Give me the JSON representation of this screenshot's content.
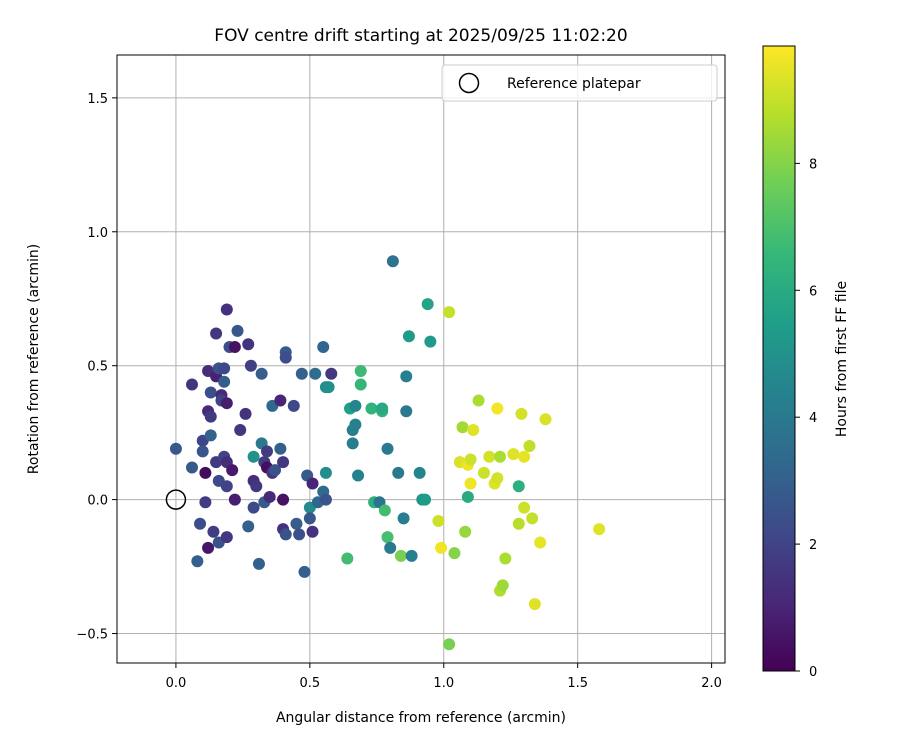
{
  "chart_data": {
    "type": "scatter",
    "title": "FOV centre drift starting at 2025/09/25 11:02:20",
    "xlabel": "Angular distance from reference (arcmin)",
    "ylabel": "Rotation from reference (arcmin)",
    "xlim": [
      -0.22,
      2.05
    ],
    "ylim": [
      -0.61,
      1.66
    ],
    "xticks": [
      0.0,
      0.5,
      1.0,
      1.5,
      2.0
    ],
    "xtick_labels": [
      "0.0",
      "0.5",
      "1.0",
      "1.5",
      "2.0"
    ],
    "yticks": [
      -0.5,
      0.0,
      0.5,
      1.0,
      1.5
    ],
    "ytick_labels": [
      "−0.5",
      "0.0",
      "0.5",
      "1.0",
      "1.5"
    ],
    "grid": true,
    "legend": {
      "location": "top-right",
      "entries": [
        "Reference platepar"
      ]
    },
    "colorbar": {
      "label": "Hours from first FF file",
      "range": [
        0,
        9.85
      ],
      "ticks": [
        0,
        2,
        4,
        6,
        8
      ],
      "tick_labels": [
        "0",
        "2",
        "4",
        "6",
        "8"
      ],
      "colormap": "viridis",
      "colors": [
        "#440154",
        "#482878",
        "#3e4989",
        "#31688e",
        "#26828e",
        "#1f9e89",
        "#35b779",
        "#6ece58",
        "#b5de2b",
        "#fde725"
      ]
    },
    "reference_point": {
      "x": 0.0,
      "y": 0.0,
      "label": "Reference platepar"
    },
    "points": [
      {
        "x": 0.0,
        "y": 0.19,
        "h": 2.7
      },
      {
        "x": 0.06,
        "y": 0.43,
        "h": 1.5
      },
      {
        "x": 0.06,
        "y": 0.12,
        "h": 2.8
      },
      {
        "x": 0.08,
        "y": -0.23,
        "h": 3.0
      },
      {
        "x": 0.09,
        "y": -0.09,
        "h": 2.3
      },
      {
        "x": 0.1,
        "y": 0.22,
        "h": 2.1
      },
      {
        "x": 0.1,
        "y": 0.18,
        "h": 2.6
      },
      {
        "x": 0.11,
        "y": 0.1,
        "h": 0.3
      },
      {
        "x": 0.11,
        "y": -0.01,
        "h": 1.8
      },
      {
        "x": 0.12,
        "y": 0.48,
        "h": 1.3
      },
      {
        "x": 0.12,
        "y": 0.33,
        "h": 1.1
      },
      {
        "x": 0.12,
        "y": -0.18,
        "h": 0.6
      },
      {
        "x": 0.13,
        "y": 0.31,
        "h": 1.7
      },
      {
        "x": 0.13,
        "y": 0.24,
        "h": 3.1
      },
      {
        "x": 0.13,
        "y": 0.4,
        "h": 2.4
      },
      {
        "x": 0.14,
        "y": -0.12,
        "h": 1.8
      },
      {
        "x": 0.15,
        "y": 0.46,
        "h": 0.9
      },
      {
        "x": 0.15,
        "y": 0.62,
        "h": 1.6
      },
      {
        "x": 0.15,
        "y": 0.14,
        "h": 1.7
      },
      {
        "x": 0.16,
        "y": 0.49,
        "h": 2.5
      },
      {
        "x": 0.16,
        "y": 0.07,
        "h": 2.2
      },
      {
        "x": 0.16,
        "y": -0.16,
        "h": 2.5
      },
      {
        "x": 0.17,
        "y": 0.39,
        "h": 1.2
      },
      {
        "x": 0.17,
        "y": 0.37,
        "h": 2.0
      },
      {
        "x": 0.18,
        "y": 0.44,
        "h": 2.9
      },
      {
        "x": 0.18,
        "y": 0.49,
        "h": 2.2
      },
      {
        "x": 0.18,
        "y": 0.16,
        "h": 2.0
      },
      {
        "x": 0.19,
        "y": 0.36,
        "h": 0.8
      },
      {
        "x": 0.19,
        "y": 0.14,
        "h": 1.3
      },
      {
        "x": 0.19,
        "y": 0.05,
        "h": 2.0
      },
      {
        "x": 0.19,
        "y": -0.14,
        "h": 1.6
      },
      {
        "x": 0.19,
        "y": 0.71,
        "h": 1.4
      },
      {
        "x": 0.2,
        "y": 0.57,
        "h": 2.4
      },
      {
        "x": 0.21,
        "y": 0.11,
        "h": 0.7
      },
      {
        "x": 0.22,
        "y": 0.0,
        "h": 0.8
      },
      {
        "x": 0.22,
        "y": 0.57,
        "h": 0.5
      },
      {
        "x": 0.23,
        "y": 0.63,
        "h": 2.7
      },
      {
        "x": 0.24,
        "y": 0.26,
        "h": 1.6
      },
      {
        "x": 0.26,
        "y": 0.32,
        "h": 1.5
      },
      {
        "x": 0.27,
        "y": 0.58,
        "h": 1.5
      },
      {
        "x": 0.27,
        "y": -0.1,
        "h": 3.0
      },
      {
        "x": 0.28,
        "y": 0.5,
        "h": 1.9
      },
      {
        "x": 0.29,
        "y": 0.16,
        "h": 5.0
      },
      {
        "x": 0.29,
        "y": 0.07,
        "h": 1.3
      },
      {
        "x": 0.29,
        "y": -0.03,
        "h": 2.2
      },
      {
        "x": 0.3,
        "y": 0.05,
        "h": 1.6
      },
      {
        "x": 0.31,
        "y": -0.24,
        "h": 3.0
      },
      {
        "x": 0.32,
        "y": 0.21,
        "h": 4.0
      },
      {
        "x": 0.32,
        "y": 0.47,
        "h": 2.9
      },
      {
        "x": 0.33,
        "y": 0.14,
        "h": 1.8
      },
      {
        "x": 0.33,
        "y": -0.01,
        "h": 2.8
      },
      {
        "x": 0.34,
        "y": 0.12,
        "h": 0.4
      },
      {
        "x": 0.34,
        "y": 0.18,
        "h": 1.8
      },
      {
        "x": 0.35,
        "y": 0.01,
        "h": 1.2
      },
      {
        "x": 0.36,
        "y": 0.1,
        "h": 1.5
      },
      {
        "x": 0.36,
        "y": 0.35,
        "h": 3.3
      },
      {
        "x": 0.37,
        "y": 0.11,
        "h": 2.5
      },
      {
        "x": 0.39,
        "y": 0.37,
        "h": 1.0
      },
      {
        "x": 0.39,
        "y": 0.19,
        "h": 3.0
      },
      {
        "x": 0.4,
        "y": 0.0,
        "h": 0.5
      },
      {
        "x": 0.4,
        "y": -0.11,
        "h": 1.4
      },
      {
        "x": 0.4,
        "y": 0.14,
        "h": 1.6
      },
      {
        "x": 0.41,
        "y": 0.55,
        "h": 2.8
      },
      {
        "x": 0.41,
        "y": 0.53,
        "h": 2.3
      },
      {
        "x": 0.41,
        "y": -0.13,
        "h": 2.5
      },
      {
        "x": 0.44,
        "y": 0.35,
        "h": 2.2
      },
      {
        "x": 0.45,
        "y": -0.09,
        "h": 2.9
      },
      {
        "x": 0.46,
        "y": -0.13,
        "h": 2.4
      },
      {
        "x": 0.47,
        "y": 0.47,
        "h": 3.0
      },
      {
        "x": 0.48,
        "y": -0.27,
        "h": 3.0
      },
      {
        "x": 0.49,
        "y": 0.09,
        "h": 2.8
      },
      {
        "x": 0.5,
        "y": -0.03,
        "h": 4.7
      },
      {
        "x": 0.5,
        "y": -0.07,
        "h": 2.7
      },
      {
        "x": 0.51,
        "y": 0.06,
        "h": 1.0
      },
      {
        "x": 0.51,
        "y": -0.12,
        "h": 1.4
      },
      {
        "x": 0.52,
        "y": 0.47,
        "h": 3.5
      },
      {
        "x": 0.53,
        "y": -0.01,
        "h": 3.2
      },
      {
        "x": 0.55,
        "y": 0.57,
        "h": 3.2
      },
      {
        "x": 0.55,
        "y": 0.03,
        "h": 3.4
      },
      {
        "x": 0.56,
        "y": 0.42,
        "h": 4.8
      },
      {
        "x": 0.56,
        "y": 0.0,
        "h": 2.6
      },
      {
        "x": 0.56,
        "y": 0.1,
        "h": 4.8
      },
      {
        "x": 0.57,
        "y": 0.42,
        "h": 4.9
      },
      {
        "x": 0.58,
        "y": 0.47,
        "h": 1.6
      },
      {
        "x": 0.64,
        "y": -0.22,
        "h": 6.8
      },
      {
        "x": 0.65,
        "y": 0.34,
        "h": 5.5
      },
      {
        "x": 0.66,
        "y": 0.26,
        "h": 4.2
      },
      {
        "x": 0.66,
        "y": 0.21,
        "h": 4.2
      },
      {
        "x": 0.67,
        "y": 0.28,
        "h": 4.3
      },
      {
        "x": 0.67,
        "y": 0.35,
        "h": 4.5
      },
      {
        "x": 0.68,
        "y": 0.09,
        "h": 4.3
      },
      {
        "x": 0.69,
        "y": 0.48,
        "h": 6.7
      },
      {
        "x": 0.69,
        "y": 0.43,
        "h": 6.5
      },
      {
        "x": 0.73,
        "y": 0.34,
        "h": 6.4
      },
      {
        "x": 0.74,
        "y": -0.01,
        "h": 6.2
      },
      {
        "x": 0.76,
        "y": -0.01,
        "h": 3.8
      },
      {
        "x": 0.77,
        "y": 0.33,
        "h": 6.4
      },
      {
        "x": 0.77,
        "y": 0.34,
        "h": 5.9
      },
      {
        "x": 0.78,
        "y": -0.04,
        "h": 6.8
      },
      {
        "x": 0.79,
        "y": -0.14,
        "h": 6.9
      },
      {
        "x": 0.79,
        "y": 0.19,
        "h": 4.0
      },
      {
        "x": 0.8,
        "y": -0.18,
        "h": 4.0
      },
      {
        "x": 0.81,
        "y": 0.89,
        "h": 3.7
      },
      {
        "x": 0.83,
        "y": 0.1,
        "h": 4.0
      },
      {
        "x": 0.84,
        "y": -0.21,
        "h": 7.8
      },
      {
        "x": 0.85,
        "y": -0.07,
        "h": 4.2
      },
      {
        "x": 0.86,
        "y": 0.46,
        "h": 4.3
      },
      {
        "x": 0.86,
        "y": 0.33,
        "h": 4.0
      },
      {
        "x": 0.87,
        "y": 0.61,
        "h": 5.4
      },
      {
        "x": 0.88,
        "y": -0.21,
        "h": 4.3
      },
      {
        "x": 0.91,
        "y": 0.1,
        "h": 4.5
      },
      {
        "x": 0.92,
        "y": 0.0,
        "h": 5.0
      },
      {
        "x": 0.93,
        "y": 0.0,
        "h": 5.4
      },
      {
        "x": 0.94,
        "y": 0.73,
        "h": 5.7
      },
      {
        "x": 0.95,
        "y": 0.59,
        "h": 5.3
      },
      {
        "x": 0.98,
        "y": -0.08,
        "h": 9.1
      },
      {
        "x": 0.99,
        "y": -0.18,
        "h": 9.6
      },
      {
        "x": 1.02,
        "y": 0.7,
        "h": 9.0
      },
      {
        "x": 1.02,
        "y": -0.54,
        "h": 7.8
      },
      {
        "x": 1.04,
        "y": -0.2,
        "h": 8.0
      },
      {
        "x": 1.06,
        "y": 0.14,
        "h": 9.3
      },
      {
        "x": 1.07,
        "y": 0.27,
        "h": 8.5
      },
      {
        "x": 1.08,
        "y": -0.12,
        "h": 8.3
      },
      {
        "x": 1.09,
        "y": 0.13,
        "h": 9.6
      },
      {
        "x": 1.09,
        "y": 0.01,
        "h": 6.0
      },
      {
        "x": 1.1,
        "y": 0.06,
        "h": 9.6
      },
      {
        "x": 1.1,
        "y": 0.15,
        "h": 9.1
      },
      {
        "x": 1.11,
        "y": 0.26,
        "h": 9.4
      },
      {
        "x": 1.13,
        "y": 0.37,
        "h": 8.6
      },
      {
        "x": 1.15,
        "y": 0.1,
        "h": 9.1
      },
      {
        "x": 1.17,
        "y": 0.16,
        "h": 9.2
      },
      {
        "x": 1.19,
        "y": 0.06,
        "h": 9.4
      },
      {
        "x": 1.2,
        "y": 0.34,
        "h": 9.7
      },
      {
        "x": 1.2,
        "y": 0.08,
        "h": 9.2
      },
      {
        "x": 1.21,
        "y": -0.34,
        "h": 8.7
      },
      {
        "x": 1.21,
        "y": 0.16,
        "h": 8.6
      },
      {
        "x": 1.22,
        "y": -0.32,
        "h": 8.4
      },
      {
        "x": 1.23,
        "y": -0.22,
        "h": 8.6
      },
      {
        "x": 1.26,
        "y": 0.17,
        "h": 9.4
      },
      {
        "x": 1.28,
        "y": 0.05,
        "h": 6.2
      },
      {
        "x": 1.28,
        "y": -0.09,
        "h": 8.8
      },
      {
        "x": 1.29,
        "y": 0.32,
        "h": 9.2
      },
      {
        "x": 1.3,
        "y": 0.16,
        "h": 9.5
      },
      {
        "x": 1.3,
        "y": -0.03,
        "h": 9.1
      },
      {
        "x": 1.32,
        "y": 0.2,
        "h": 8.9
      },
      {
        "x": 1.33,
        "y": -0.07,
        "h": 9.0
      },
      {
        "x": 1.34,
        "y": -0.39,
        "h": 9.4
      },
      {
        "x": 1.36,
        "y": -0.16,
        "h": 9.5
      },
      {
        "x": 1.38,
        "y": 0.3,
        "h": 9.3
      },
      {
        "x": 1.58,
        "y": -0.11,
        "h": 9.4
      }
    ]
  }
}
